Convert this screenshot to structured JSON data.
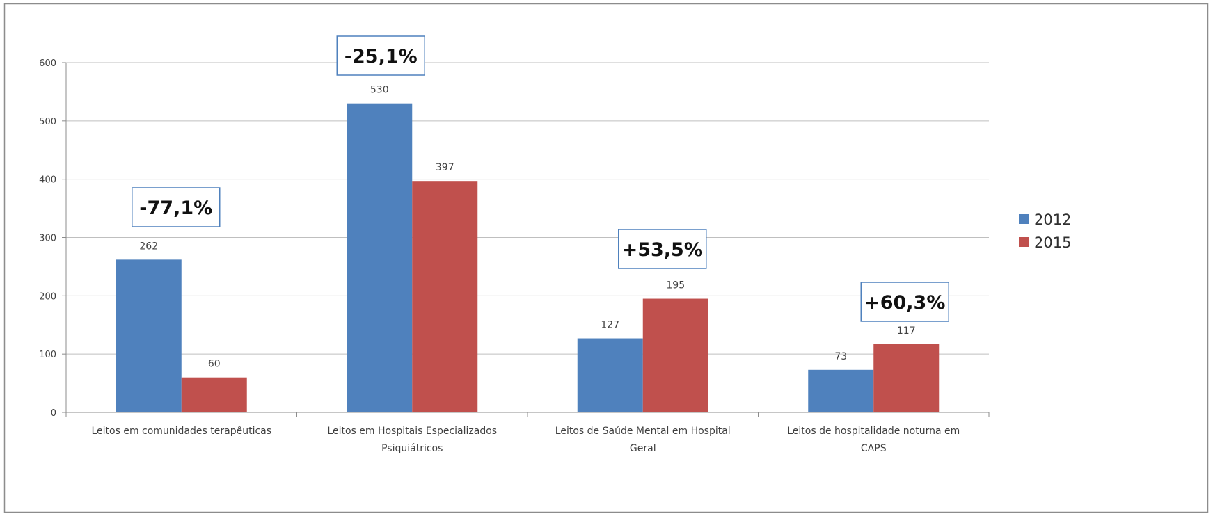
{
  "chart_data": {
    "type": "bar",
    "title": "",
    "xlabel": "",
    "ylabel": "",
    "ylim": [
      0,
      600
    ],
    "yticks": [
      0,
      100,
      200,
      300,
      400,
      500,
      600
    ],
    "grid": true,
    "legend_position": "right",
    "categories": [
      [
        "Leitos em comunidades terapêuticas"
      ],
      [
        "Leitos em Hospitais Especializados",
        "Psiquiátricos"
      ],
      [
        "Leitos de Saúde Mental em Hospital",
        "Geral"
      ],
      [
        "Leitos de hospitalidade noturna em",
        "CAPS"
      ]
    ],
    "series": [
      {
        "name": "2012",
        "color": "#4F81BD",
        "values": [
          262,
          530,
          127,
          73
        ]
      },
      {
        "name": "2015",
        "color": "#C0504D",
        "values": [
          60,
          397,
          195,
          117
        ]
      }
    ],
    "annotations": [
      "-77,1%",
      "-25,1%",
      "+53,5%",
      "+60,3%"
    ],
    "annotation_border_color": "#4F81BD",
    "grid_color": "#BFBFBF",
    "axis_color": "#8C8C8C"
  }
}
